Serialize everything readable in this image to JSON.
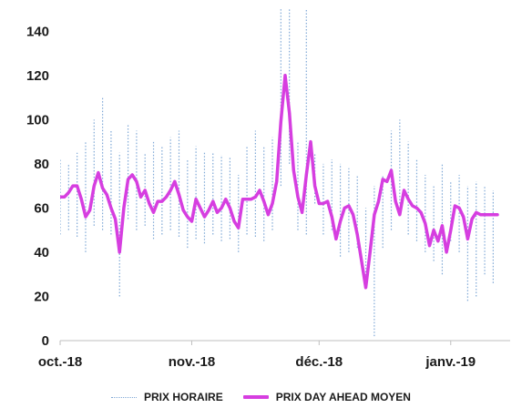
{
  "chart_data": {
    "type": "line",
    "ylim": [
      0,
      150
    ],
    "yticks": [
      0,
      20,
      40,
      60,
      80,
      100,
      120,
      140
    ],
    "xlim": [
      "2018-10-01",
      "2019-01-15"
    ],
    "xticks": [
      {
        "date": "2018-10-01",
        "label": "oct.-18"
      },
      {
        "date": "2018-11-01",
        "label": "nov.-18"
      },
      {
        "date": "2018-12-01",
        "label": "déc.-18"
      },
      {
        "date": "2019-01-01",
        "label": "janv.-19"
      }
    ],
    "series": [
      {
        "name": "PRIX DAY AHEAD MOYEN",
        "color": "#d63ee0",
        "style": "solid",
        "x": [
          "2018-10-01",
          "2018-10-02",
          "2018-10-03",
          "2018-10-04",
          "2018-10-05",
          "2018-10-06",
          "2018-10-07",
          "2018-10-08",
          "2018-10-09",
          "2018-10-10",
          "2018-10-11",
          "2018-10-12",
          "2018-10-13",
          "2018-10-14",
          "2018-10-15",
          "2018-10-16",
          "2018-10-17",
          "2018-10-18",
          "2018-10-19",
          "2018-10-20",
          "2018-10-21",
          "2018-10-22",
          "2018-10-23",
          "2018-10-24",
          "2018-10-25",
          "2018-10-26",
          "2018-10-27",
          "2018-10-28",
          "2018-10-29",
          "2018-10-30",
          "2018-10-31",
          "2018-11-01",
          "2018-11-02",
          "2018-11-03",
          "2018-11-04",
          "2018-11-05",
          "2018-11-06",
          "2018-11-07",
          "2018-11-08",
          "2018-11-09",
          "2018-11-10",
          "2018-11-11",
          "2018-11-12",
          "2018-11-13",
          "2018-11-14",
          "2018-11-15",
          "2018-11-16",
          "2018-11-17",
          "2018-11-18",
          "2018-11-19",
          "2018-11-20",
          "2018-11-21",
          "2018-11-22",
          "2018-11-23",
          "2018-11-24",
          "2018-11-25",
          "2018-11-26",
          "2018-11-27",
          "2018-11-28",
          "2018-11-29",
          "2018-11-30",
          "2018-12-01",
          "2018-12-02",
          "2018-12-03",
          "2018-12-04",
          "2018-12-05",
          "2018-12-06",
          "2018-12-07",
          "2018-12-08",
          "2018-12-09",
          "2018-12-10",
          "2018-12-11",
          "2018-12-12",
          "2018-12-13",
          "2018-12-14",
          "2018-12-15",
          "2018-12-16",
          "2018-12-17",
          "2018-12-18",
          "2018-12-19",
          "2018-12-20",
          "2018-12-21",
          "2018-12-22",
          "2018-12-23",
          "2018-12-24",
          "2018-12-25",
          "2018-12-26",
          "2018-12-27",
          "2018-12-28",
          "2018-12-29",
          "2018-12-30",
          "2018-12-31",
          "2019-01-01",
          "2019-01-02",
          "2019-01-03",
          "2019-01-04",
          "2019-01-05",
          "2019-01-06",
          "2019-01-07",
          "2019-01-08",
          "2019-01-09",
          "2019-01-10",
          "2019-01-11",
          "2019-01-12"
        ],
        "y": [
          65,
          65,
          67,
          70,
          70,
          64,
          56,
          59,
          70,
          76,
          69,
          66,
          60,
          55,
          40,
          60,
          73,
          75,
          72,
          65,
          68,
          62,
          58,
          63,
          63,
          65,
          68,
          72,
          66,
          59,
          56,
          54,
          64,
          60,
          56,
          59,
          63,
          58,
          60,
          64,
          60,
          54,
          51,
          64,
          64,
          64,
          65,
          68,
          63,
          57,
          62,
          72,
          99,
          120,
          103,
          77,
          65,
          58,
          75,
          90,
          70,
          62,
          62,
          63,
          56,
          46,
          54,
          60,
          61,
          57,
          48,
          36,
          24,
          40,
          57,
          63,
          73,
          72,
          77,
          63,
          57,
          68,
          64,
          61,
          60,
          58,
          53,
          43,
          50,
          45,
          52,
          40,
          50,
          61,
          60,
          56,
          46,
          55,
          58,
          57,
          57,
          57,
          57,
          57
        ]
      },
      {
        "name": "PRIX HORAIRE",
        "color": "#7fa8d6",
        "style": "dotted",
        "x": [
          "2018-10-01",
          "2018-10-03",
          "2018-10-05",
          "2018-10-07",
          "2018-10-09",
          "2018-10-11",
          "2018-10-13",
          "2018-10-15",
          "2018-10-17",
          "2018-10-19",
          "2018-10-21",
          "2018-10-23",
          "2018-10-25",
          "2018-10-27",
          "2018-10-29",
          "2018-10-31",
          "2018-11-02",
          "2018-11-04",
          "2018-11-06",
          "2018-11-08",
          "2018-11-10",
          "2018-11-12",
          "2018-11-14",
          "2018-11-16",
          "2018-11-18",
          "2018-11-20",
          "2018-11-22",
          "2018-11-24",
          "2018-11-26",
          "2018-11-28",
          "2018-11-30",
          "2018-12-02",
          "2018-12-04",
          "2018-12-06",
          "2018-12-08",
          "2018-12-10",
          "2018-12-12",
          "2018-12-14",
          "2018-12-16",
          "2018-12-18",
          "2018-12-20",
          "2018-12-22",
          "2018-12-24",
          "2018-12-26",
          "2018-12-28",
          "2018-12-30",
          "2019-01-01",
          "2019-01-03",
          "2019-01-05",
          "2019-01-07",
          "2019-01-09",
          "2019-01-11"
        ],
        "min": [
          48,
          50,
          47,
          40,
          52,
          50,
          48,
          20,
          55,
          50,
          52,
          46,
          48,
          50,
          47,
          42,
          46,
          44,
          48,
          45,
          46,
          40,
          48,
          47,
          45,
          50,
          70,
          80,
          50,
          48,
          62,
          48,
          50,
          38,
          40,
          42,
          28,
          2,
          42,
          50,
          62,
          48,
          45,
          40,
          36,
          30,
          45,
          40,
          18,
          20,
          30,
          26
        ],
        "max": [
          82,
          80,
          85,
          90,
          100,
          110,
          95,
          85,
          98,
          95,
          85,
          90,
          88,
          92,
          95,
          82,
          88,
          85,
          85,
          84,
          83,
          75,
          88,
          95,
          88,
          92,
          150,
          150,
          90,
          150,
          85,
          80,
          82,
          80,
          78,
          75,
          60,
          70,
          75,
          95,
          100,
          90,
          82,
          75,
          70,
          80,
          72,
          75,
          70,
          72,
          70,
          68
        ]
      }
    ],
    "legend": [
      {
        "label": "PRIX HORAIRE",
        "style": "dotted",
        "color": "#7fa8d6"
      },
      {
        "label": "PRIX DAY AHEAD MOYEN",
        "style": "solid",
        "color": "#d63ee0"
      }
    ],
    "legend_position": "bottom"
  }
}
